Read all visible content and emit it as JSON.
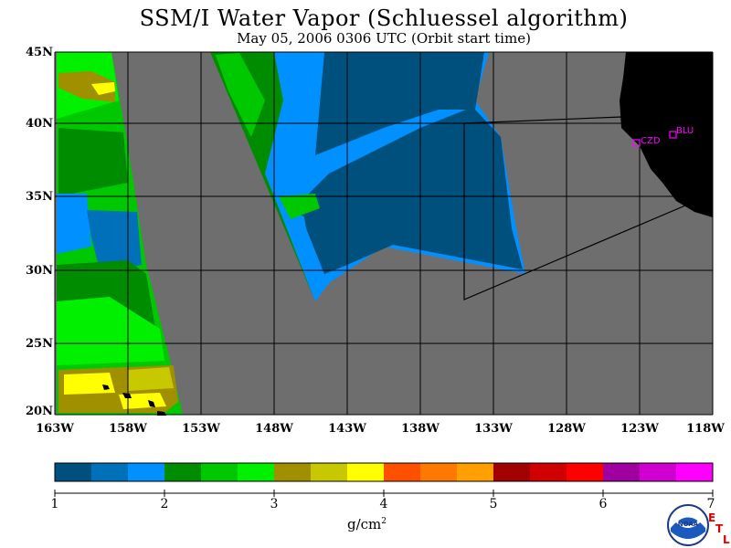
{
  "title": "SSM/I Water Vapor (Schluessel algorithm)",
  "subtitle": "May 05, 2006  0306 UTC  (Orbit start time)",
  "lat_labels": [
    "45N",
    "40N",
    "35N",
    "30N",
    "25N",
    "20N"
  ],
  "lon_labels": [
    "163W",
    "158W",
    "153W",
    "148W",
    "143W",
    "138W",
    "133W",
    "128W",
    "123W",
    "118W"
  ],
  "colorbar": {
    "ticks": [
      "1",
      "2",
      "3",
      "4",
      "5",
      "6",
      "7"
    ],
    "unit": "g/cm",
    "unit_sup": "2",
    "colors": [
      "#00507e",
      "#0070b8",
      "#0090ff",
      "#008c00",
      "#00c800",
      "#00f000",
      "#a09000",
      "#c8c800",
      "#ffff00",
      "#ff5000",
      "#ff7800",
      "#ffa000",
      "#a00000",
      "#d00000",
      "#ff0000",
      "#a000a0",
      "#d000d0",
      "#ff00ff"
    ]
  },
  "map_colors": {
    "nodata": "#6e6e6e",
    "land": "#000000",
    "site": "#ff00ff"
  },
  "sites": [
    {
      "id": "czd",
      "label": "CZD"
    },
    {
      "id": "blu",
      "label": "BLU"
    }
  ],
  "logo": {
    "text": "NOAA"
  },
  "etl": {
    "e": "E",
    "t": "T",
    "l": "L"
  }
}
